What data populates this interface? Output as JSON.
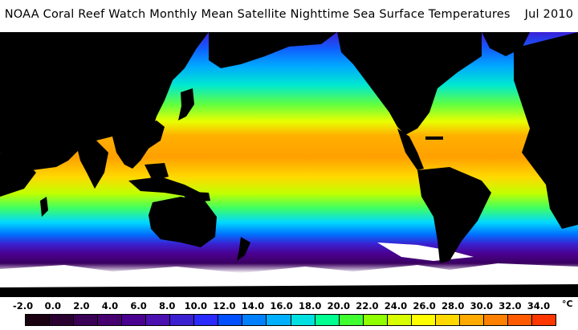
{
  "title": "NOAA Coral Reef Watch Monthly Mean Satellite Nighttime Sea Surface Temperatures",
  "date": "Jul 2010",
  "legend": {
    "unit": "°C",
    "ticks": [
      "-2.0",
      "0.0",
      "2.0",
      "4.0",
      "6.0",
      "8.0",
      "10.0",
      "12.0",
      "14.0",
      "16.0",
      "18.0",
      "20.0",
      "22.0",
      "24.0",
      "26.0",
      "28.0",
      "30.0",
      "32.0",
      "34.0"
    ],
    "colors": [
      "#1a0010",
      "#2a0030",
      "#3a0055",
      "#460070",
      "#4a0090",
      "#4a10b0",
      "#3a20d0",
      "#2a2aff",
      "#0050ff",
      "#0080ff",
      "#00b0ff",
      "#00e0e0",
      "#00ff90",
      "#40ff30",
      "#90ff00",
      "#d8ff00",
      "#ffff00",
      "#ffd800",
      "#ffaa00",
      "#ff8000",
      "#ff5a00",
      "#ff3800"
    ]
  }
}
